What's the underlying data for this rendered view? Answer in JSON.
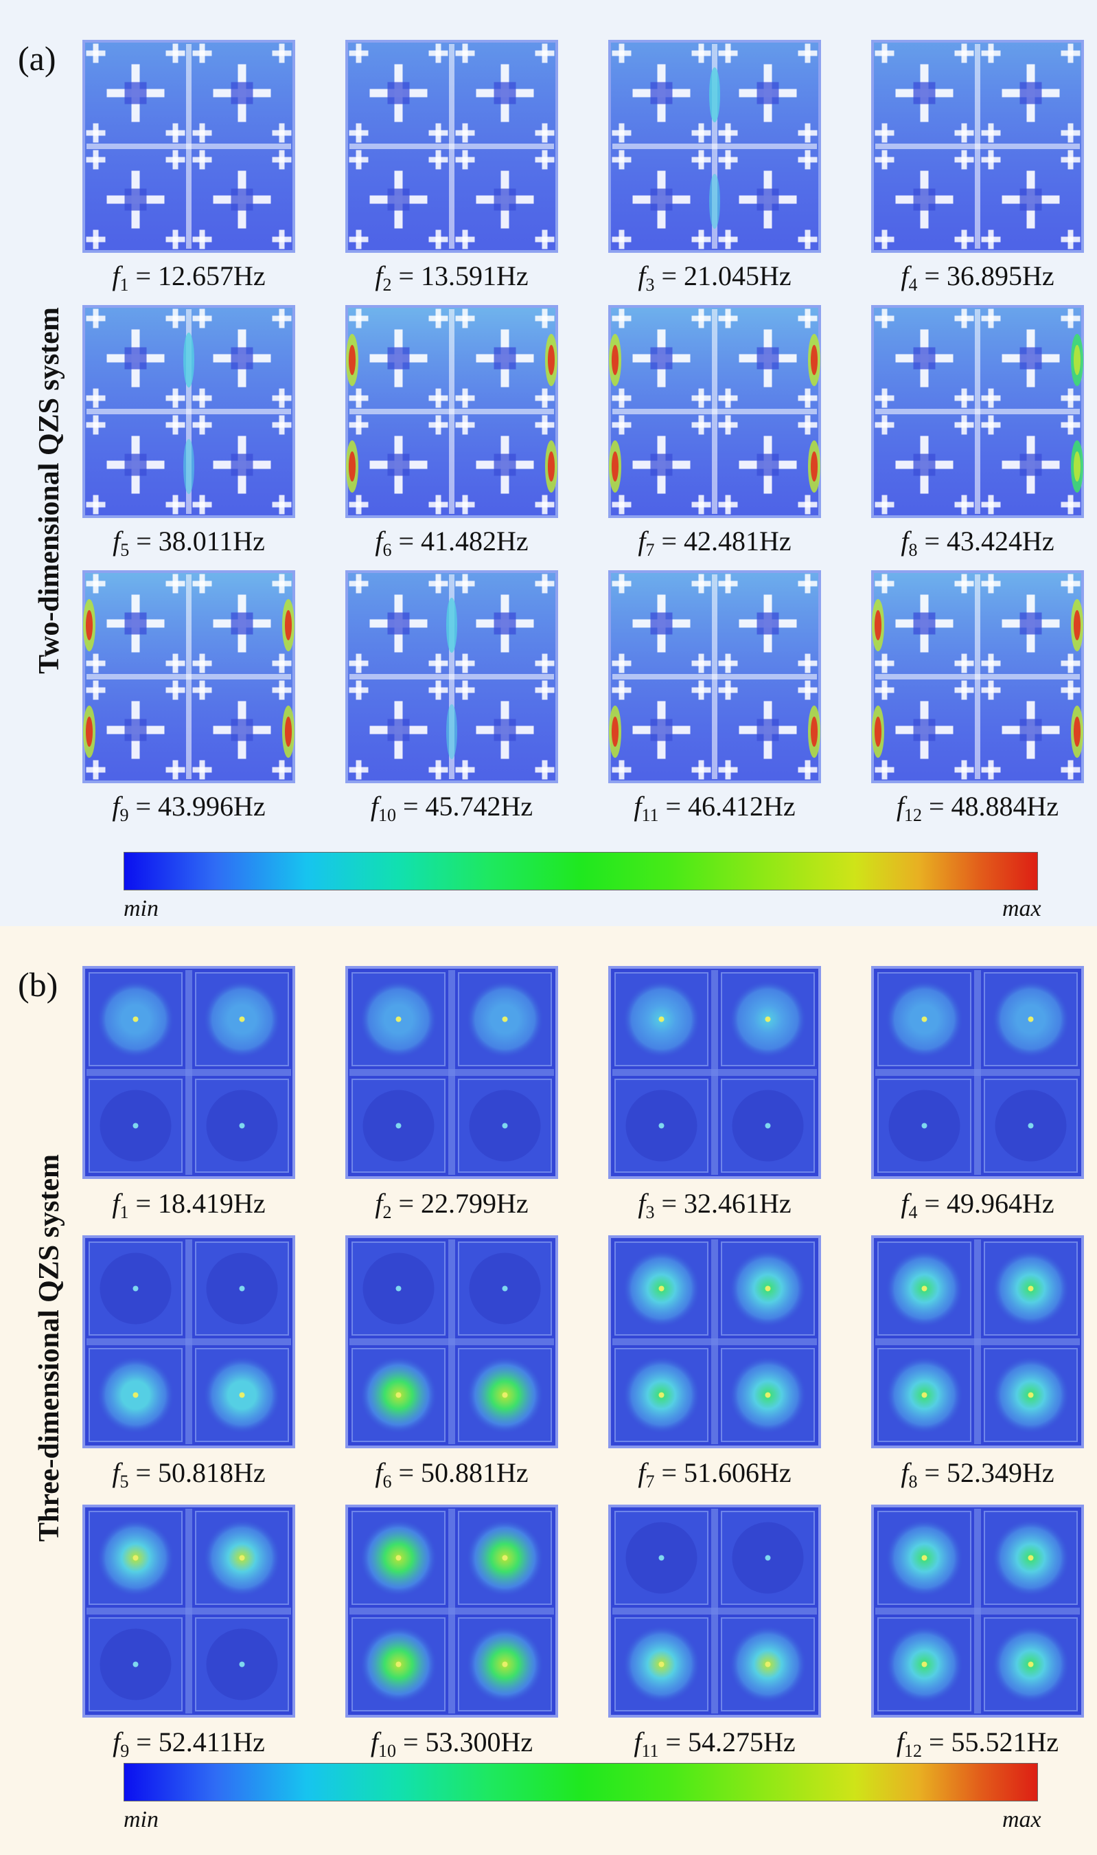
{
  "colors": {
    "panel_a_bg": "#eef3fa",
    "panel_b_bg": "#fcf6ea",
    "mode_blue": "#3f52e0",
    "mode_cyan": "#55cfe4",
    "mode_green": "#3ee06a",
    "mode_red": "#e0321c",
    "strut_white": "#ffffff"
  },
  "panel_a": {
    "label": "(a)",
    "side_title": "Two-dimensional QZS system",
    "colorbar": {
      "min": "min",
      "max": "max"
    },
    "modes": [
      {
        "sub": "1",
        "value": "= 12.657Hz",
        "intensity": 0.35,
        "pattern": "uniform-top"
      },
      {
        "sub": "2",
        "value": "= 13.591Hz",
        "intensity": 0.3,
        "pattern": "uniform-top"
      },
      {
        "sub": "3",
        "value": "= 21.045Hz",
        "intensity": 0.4,
        "pattern": "top-cells"
      },
      {
        "sub": "4",
        "value": "= 36.895Hz",
        "intensity": 0.45,
        "pattern": "uniform-top"
      },
      {
        "sub": "5",
        "value": "= 38.011Hz",
        "intensity": 0.5,
        "pattern": "top-cells"
      },
      {
        "sub": "6",
        "value": "= 41.482Hz",
        "intensity": 0.8,
        "pattern": "side-edges"
      },
      {
        "sub": "7",
        "value": "= 42.481Hz",
        "intensity": 0.75,
        "pattern": "side-edges"
      },
      {
        "sub": "8",
        "value": "= 43.424Hz",
        "intensity": 0.55,
        "pattern": "right-edge"
      },
      {
        "sub": "9",
        "value": "= 43.996Hz",
        "intensity": 0.8,
        "pattern": "side-edges"
      },
      {
        "sub": "10",
        "value": "= 45.742Hz",
        "intensity": 0.45,
        "pattern": "top-cells"
      },
      {
        "sub": "11",
        "value": "= 46.412Hz",
        "intensity": 0.7,
        "pattern": "left-bottom"
      },
      {
        "sub": "12",
        "value": "= 48.884Hz",
        "intensity": 0.75,
        "pattern": "side-edges"
      }
    ]
  },
  "panel_b": {
    "label": "(b)",
    "side_title": "Three-dimensional QZS system",
    "colorbar": {
      "min": "min",
      "max": "max"
    },
    "modes": [
      {
        "sub": "1",
        "value": "= 18.419Hz",
        "intensity": 0.2,
        "pattern": "top-cells"
      },
      {
        "sub": "2",
        "value": "= 22.799Hz",
        "intensity": 0.2,
        "pattern": "top-cells"
      },
      {
        "sub": "3",
        "value": "= 32.461Hz",
        "intensity": 0.3,
        "pattern": "top-cells"
      },
      {
        "sub": "4",
        "value": "= 49.964Hz",
        "intensity": 0.2,
        "pattern": "top-cells"
      },
      {
        "sub": "5",
        "value": "= 50.818Hz",
        "intensity": 0.45,
        "pattern": "bottom-cells"
      },
      {
        "sub": "6",
        "value": "= 50.881Hz",
        "intensity": 0.75,
        "pattern": "bottom-cells"
      },
      {
        "sub": "7",
        "value": "= 51.606Hz",
        "intensity": 0.5,
        "pattern": "all-cells"
      },
      {
        "sub": "8",
        "value": "= 52.349Hz",
        "intensity": 0.55,
        "pattern": "all-cells"
      },
      {
        "sub": "9",
        "value": "= 52.411Hz",
        "intensity": 0.7,
        "pattern": "top-cells"
      },
      {
        "sub": "10",
        "value": "= 53.300Hz",
        "intensity": 0.75,
        "pattern": "all-cells"
      },
      {
        "sub": "11",
        "value": "= 54.275Hz",
        "intensity": 0.7,
        "pattern": "bottom-cells"
      },
      {
        "sub": "12",
        "value": "= 55.521Hz",
        "intensity": 0.6,
        "pattern": "all-cells"
      }
    ]
  }
}
